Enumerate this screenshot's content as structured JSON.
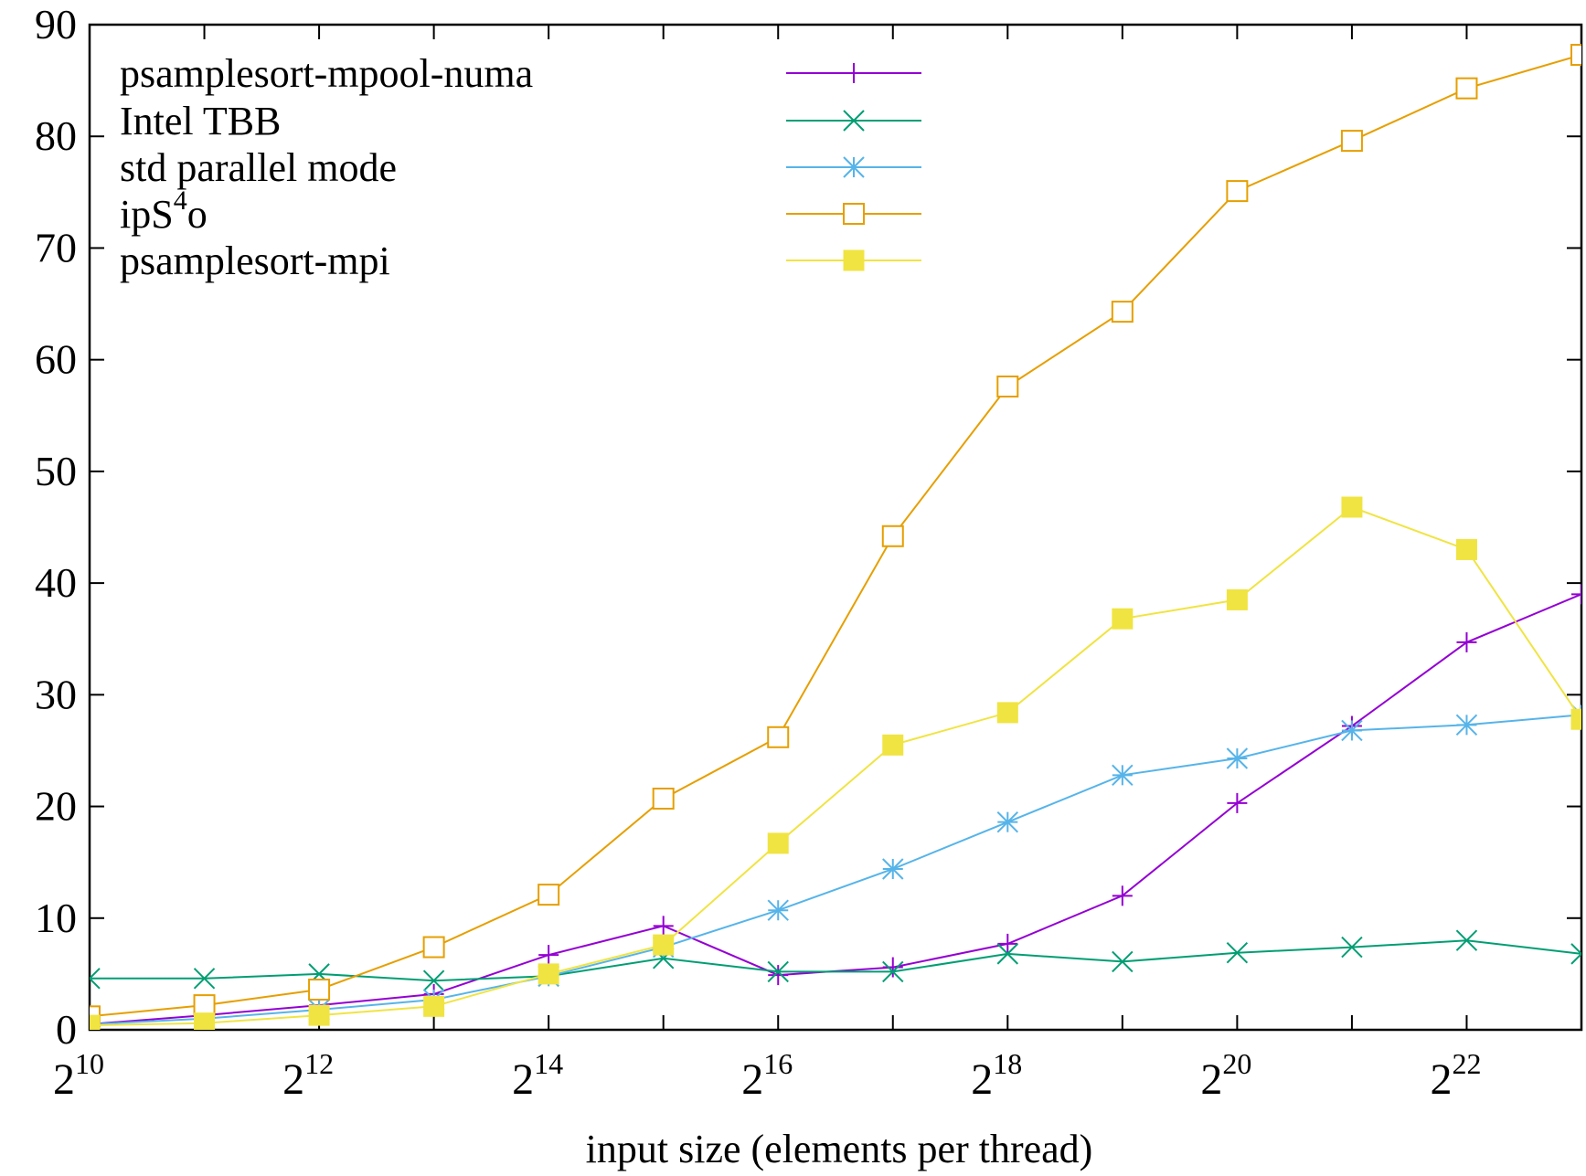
{
  "chart_data": {
    "type": "line",
    "xlabel": "input size (elements per thread)",
    "ylabel": "",
    "x": [
      10,
      11,
      12,
      13,
      14,
      15,
      16,
      17,
      18,
      19,
      20,
      21,
      22,
      23
    ],
    "xscale": "log2",
    "xlim": [
      10,
      23
    ],
    "ylim": [
      0,
      90
    ],
    "xticks": [
      {
        "value": 10,
        "base": "2",
        "exp": "10"
      },
      {
        "value": 12,
        "base": "2",
        "exp": "12"
      },
      {
        "value": 14,
        "base": "2",
        "exp": "14"
      },
      {
        "value": 16,
        "base": "2",
        "exp": "16"
      },
      {
        "value": 18,
        "base": "2",
        "exp": "18"
      },
      {
        "value": 20,
        "base": "2",
        "exp": "20"
      },
      {
        "value": 22,
        "base": "2",
        "exp": "22"
      }
    ],
    "yticks": [
      "0",
      "10",
      "20",
      "30",
      "40",
      "50",
      "60",
      "70",
      "80",
      "90"
    ],
    "grid": false,
    "legend_position": "top-left",
    "series": [
      {
        "name": "psamplesort-mpool-numa",
        "color": "#9400d3",
        "marker": "plus",
        "values": [
          0.5,
          1.3,
          2.2,
          3.2,
          6.7,
          9.3,
          4.9,
          5.6,
          7.7,
          12.0,
          20.3,
          27.2,
          34.7,
          39.0
        ]
      },
      {
        "name": "Intel TBB",
        "color": "#009e73",
        "marker": "cross",
        "values": [
          4.6,
          4.6,
          5.0,
          4.4,
          4.8,
          6.4,
          5.2,
          5.2,
          6.8,
          6.1,
          6.9,
          7.4,
          8.0,
          6.8
        ]
      },
      {
        "name": "std parallel mode",
        "color": "#56b4e9",
        "marker": "star",
        "values": [
          0.5,
          1.0,
          1.8,
          2.7,
          4.8,
          7.4,
          10.7,
          14.4,
          18.6,
          22.8,
          24.3,
          26.8,
          27.3,
          28.2
        ]
      },
      {
        "name": "ipS⁴o",
        "name_base": "ipS",
        "name_sup": "4",
        "name_tail": "o",
        "color": "#e69f00",
        "marker": "square-open",
        "values": [
          1.2,
          2.2,
          3.6,
          7.4,
          12.1,
          20.7,
          26.2,
          44.2,
          57.6,
          64.3,
          75.1,
          79.6,
          84.3,
          87.3
        ]
      },
      {
        "name": "psamplesort-mpi",
        "color": "#f0e442",
        "marker": "square-filled",
        "values": [
          0.4,
          0.6,
          1.3,
          2.1,
          5.0,
          7.6,
          16.7,
          25.5,
          28.4,
          36.8,
          38.5,
          46.8,
          43.0,
          27.8
        ]
      }
    ]
  }
}
